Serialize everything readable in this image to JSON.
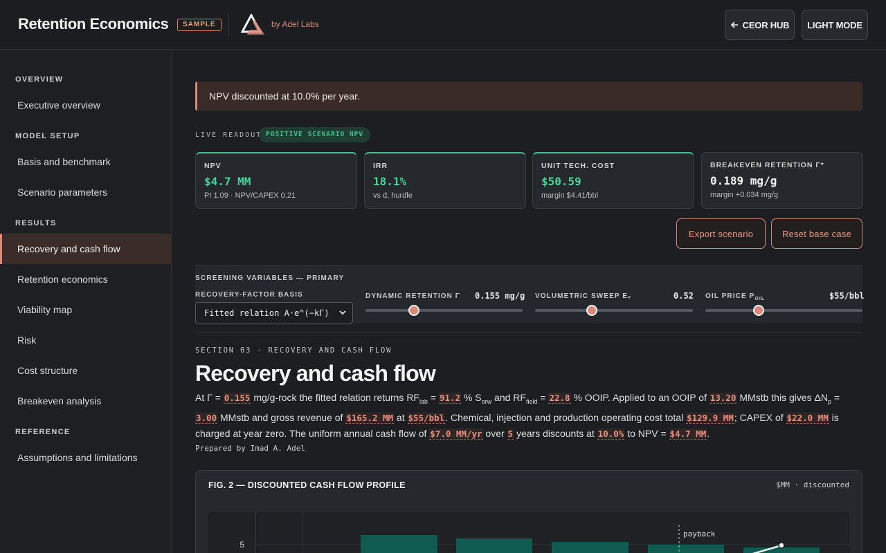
{
  "header": {
    "title": "Retention Economics",
    "badge": "SAMPLE",
    "byline": "by Adel Labs",
    "ceor_hub": "CEOR HUB",
    "light_mode": "LIGHT MODE"
  },
  "sidebar": {
    "sections": [
      {
        "label": "OVERVIEW",
        "items": [
          "Executive overview"
        ]
      },
      {
        "label": "MODEL SETUP",
        "items": [
          "Basis and benchmark",
          "Scenario parameters"
        ]
      },
      {
        "label": "RESULTS",
        "items": [
          "Recovery and cash flow",
          "Retention economics",
          "Viability map",
          "Risk",
          "Cost structure",
          "Breakeven analysis"
        ]
      },
      {
        "label": "REFERENCE",
        "items": [
          "Assumptions and limitations"
        ]
      }
    ],
    "active": "Recovery and cash flow"
  },
  "notice": "NPV discounted at 10.0% per year.",
  "readout": {
    "label": "LIVE READOUT",
    "badge": "POSITIVE SCENARIO NPV",
    "kpis": [
      {
        "label": "NPV",
        "value": "$4.7 MM",
        "sub": "PI 1.09 · NPV/CAPEX 0.21"
      },
      {
        "label": "IRR",
        "value": "18.1%",
        "sub": "vs d, hurdle"
      },
      {
        "label": "UNIT TECH. COST",
        "value": "$50.59",
        "sub": "margin $4.41/bbl"
      },
      {
        "label": "BREAKEVEN RETENTION Γ*",
        "value": "0.189 mg/g",
        "sub": "margin +0.034 mg/g"
      }
    ]
  },
  "actions": {
    "export": "Export scenario",
    "reset": "Reset base case"
  },
  "variables": {
    "title": "SCREENING VARIABLES — PRIMARY",
    "basis_label": "RECOVERY-FACTOR BASIS",
    "basis_value": "Fitted relation A·e^(−kΓ)",
    "sliders": [
      {
        "label": "DYNAMIC RETENTION Γ",
        "value": "0.155 mg/g",
        "fraction": 0.31
      },
      {
        "label": "VOLUMETRIC SWEEP Eᵥ",
        "value": "0.52",
        "fraction": 0.36
      },
      {
        "label": "OIL PRICE P",
        "label_sub": "OIL",
        "value": "$55/bbl",
        "fraction": 0.34
      }
    ]
  },
  "section": {
    "kicker": "SECTION 03 · RECOVERY AND CASH FLOW",
    "title": "Recovery and cash flow",
    "prose": {
      "p1": "At Γ = ",
      "gamma": "0.155",
      "p2": " mg/g-rock the fitted relation returns RF",
      "sub_lab": "lab",
      "p3": " = ",
      "rf_lab": "91.2",
      "p4": " % S",
      "sub_orw": "orw",
      "p5": " and RF",
      "sub_field": "field",
      "p6": " = ",
      "rf_field": "22.8",
      "p7": " % OOIP. Applied to an OOIP of ",
      "ooip": "13.20",
      "p8": " MMstb this gives ΔN",
      "sub_p": "p",
      "p9": " = ",
      "dnp": "3.00",
      "p10": " MMstb and gross revenue of ",
      "revenue": "$165.2 MM",
      "p11": " at ",
      "price": "$55/bbl",
      "p12": ". Chemical, injection and production operating cost total ",
      "opex": "$129.9 MM",
      "p13": "; CAPEX of ",
      "capex": "$22.0 MM",
      "p14": " is charged at year zero. The uniform annual cash flow of ",
      "annual": "$7.0 MM/yr",
      "p15": " over ",
      "years": "5",
      "p16": " years discounts at ",
      "rate": "10.0%",
      "p17": " to NPV = ",
      "npv": "$4.7 MM",
      "p18": "."
    },
    "prepared": "Prepared by Imad A. Adel"
  },
  "figure": {
    "title": "FIG. 2 — DISCOUNTED CASH FLOW PROFILE",
    "unit": "$MM · discounted",
    "y_tick": "5",
    "payback_label": "payback",
    "bar_color": "#0f5b50"
  }
}
